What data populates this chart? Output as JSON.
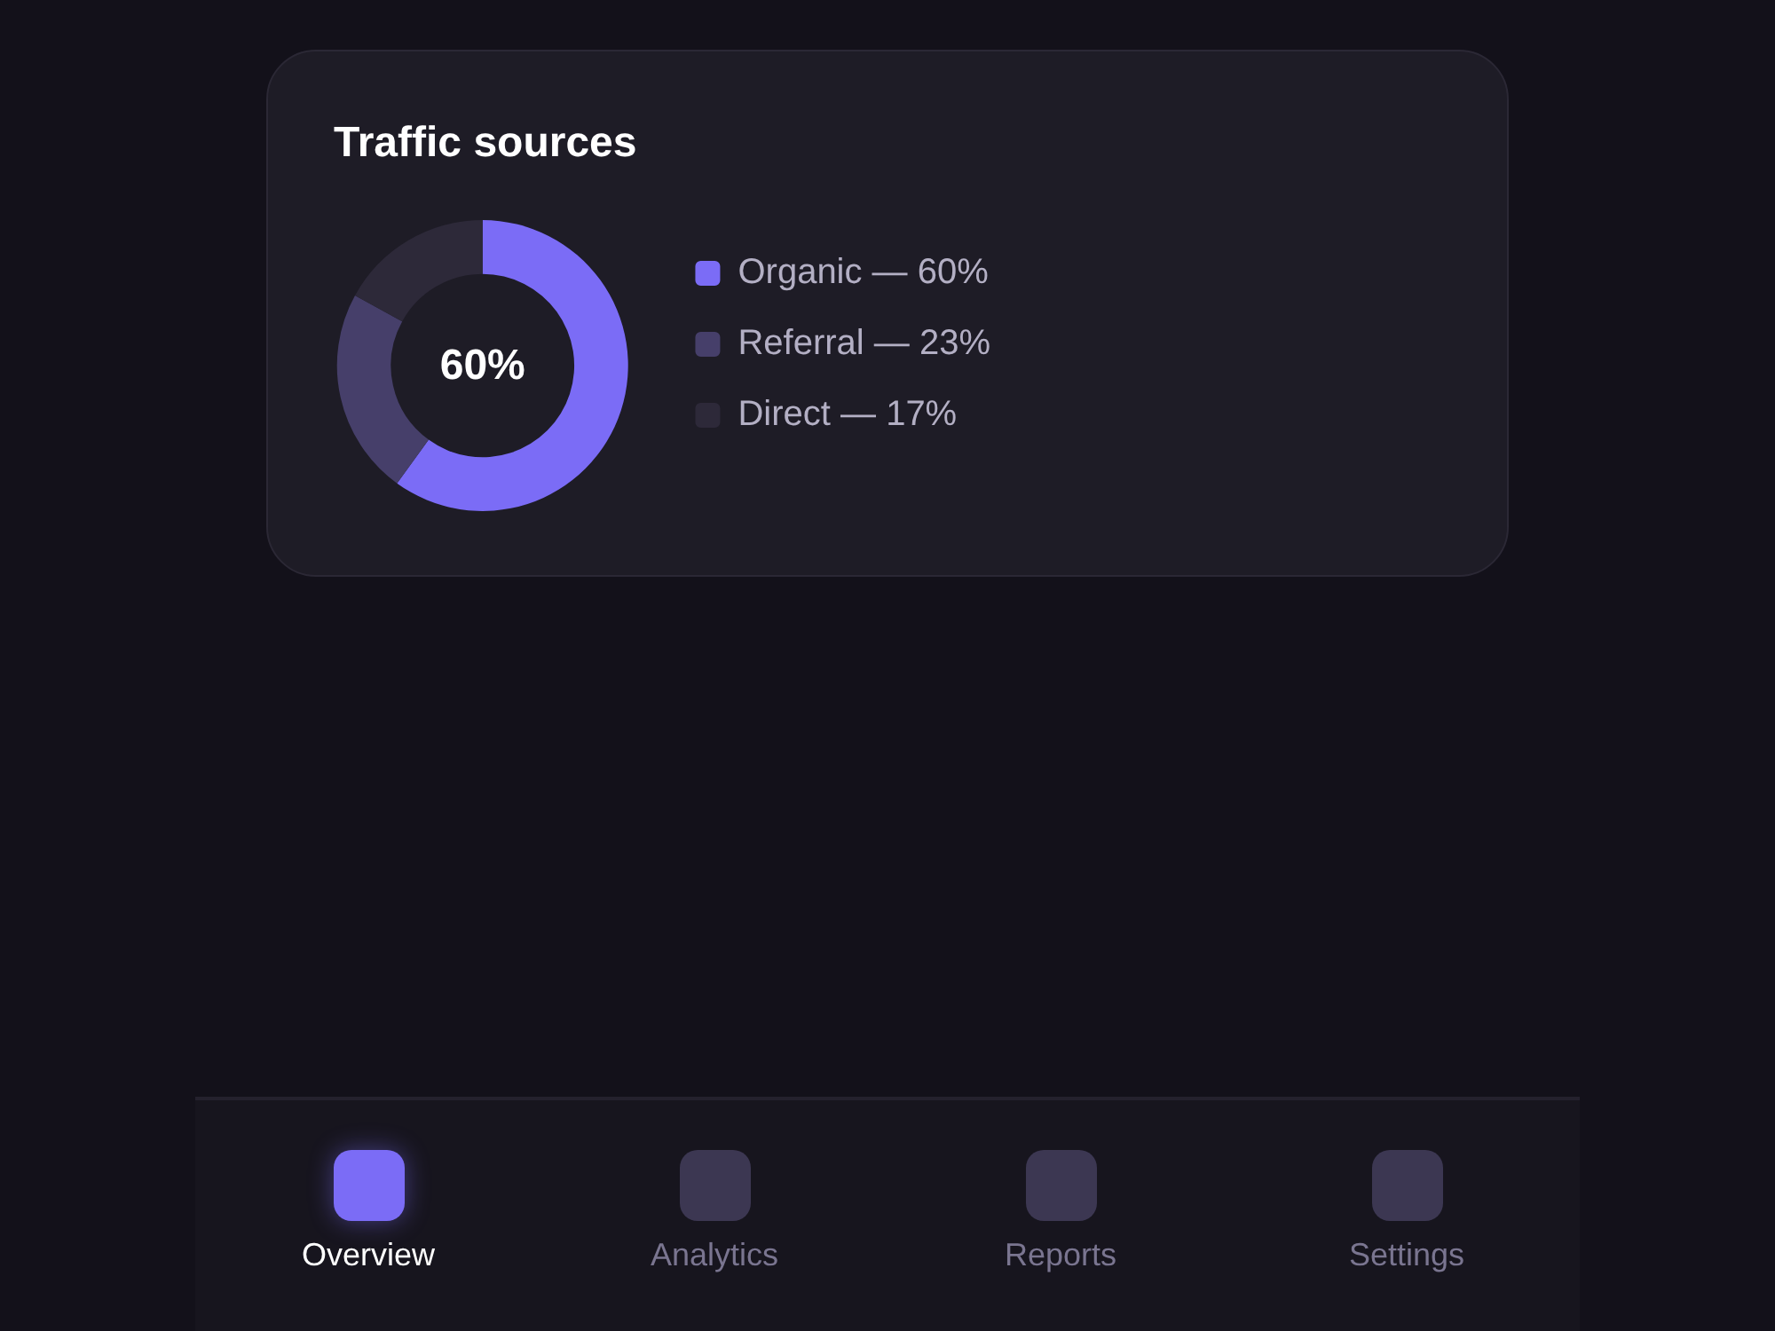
{
  "chart_data": {
    "type": "donut",
    "title": "Traffic sources",
    "categories": [
      "Organic — 60%",
      "Referral — 23%",
      "Direct — 17%"
    ],
    "values": [
      60,
      23,
      17
    ],
    "colors": [
      "#7b6cf6",
      "#463f6a",
      "#2d2939"
    ],
    "legend": "right",
    "annotations": [
      "60%",
      "Overview",
      "Analytics",
      "Reports",
      "Settings"
    ]
  }
}
